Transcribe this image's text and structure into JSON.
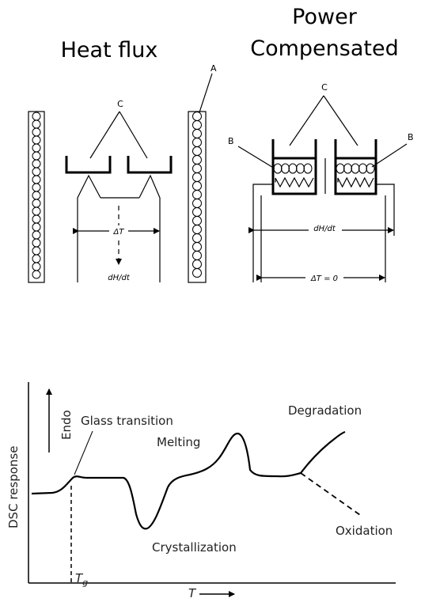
{
  "top": {
    "heat_flux_title": "Heat flux",
    "power_title_line1": "Power",
    "power_title_line2": "Compensated",
    "label_a": "A",
    "label_b": "B",
    "label_c": "C",
    "delta_t": "ΔT",
    "dh_dt": "dH/dt",
    "delta_t_zero": "ΔT = 0"
  },
  "dsc": {
    "ylabel": "DSC response",
    "endo": "Endo",
    "xlabel": "T",
    "tg_label": "T",
    "tg_sub": "g",
    "labels": {
      "glass": "Glass transition",
      "melting": "Melting",
      "degradation": "Degradation",
      "crystallization": "Crystallization",
      "oxidation": "Oxidation"
    }
  }
}
